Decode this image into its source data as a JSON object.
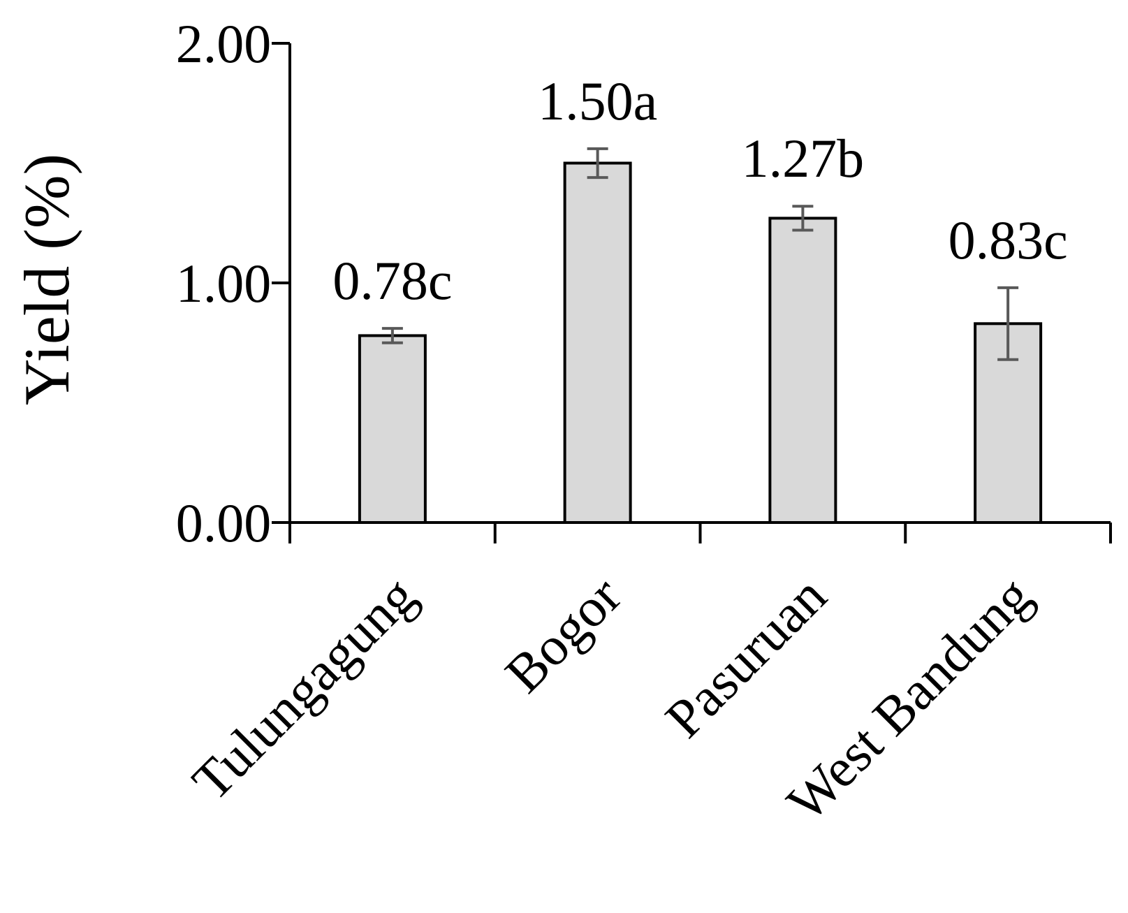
{
  "chart_data": {
    "type": "bar",
    "categories": [
      "Tulungagung",
      "Bogor",
      "Pasuruan",
      "West Bandung"
    ],
    "values": [
      0.78,
      1.5,
      1.27,
      0.83
    ],
    "errors": [
      0.03,
      0.06,
      0.05,
      0.15
    ],
    "data_labels": [
      "0.78c",
      "1.50a",
      "1.27b",
      "0.83c"
    ],
    "title": "",
    "xlabel": "",
    "ylabel": "Yield (%)",
    "ylim": [
      0,
      2
    ],
    "yticks": [
      0,
      1,
      2
    ],
    "ytick_labels": [
      "0.00",
      "1.00",
      "2.00"
    ],
    "grid": false,
    "colors": {
      "bar_fill": "#d9d9d9",
      "bar_stroke": "#000000",
      "error_bar": "#595959",
      "axis": "#000000"
    }
  }
}
